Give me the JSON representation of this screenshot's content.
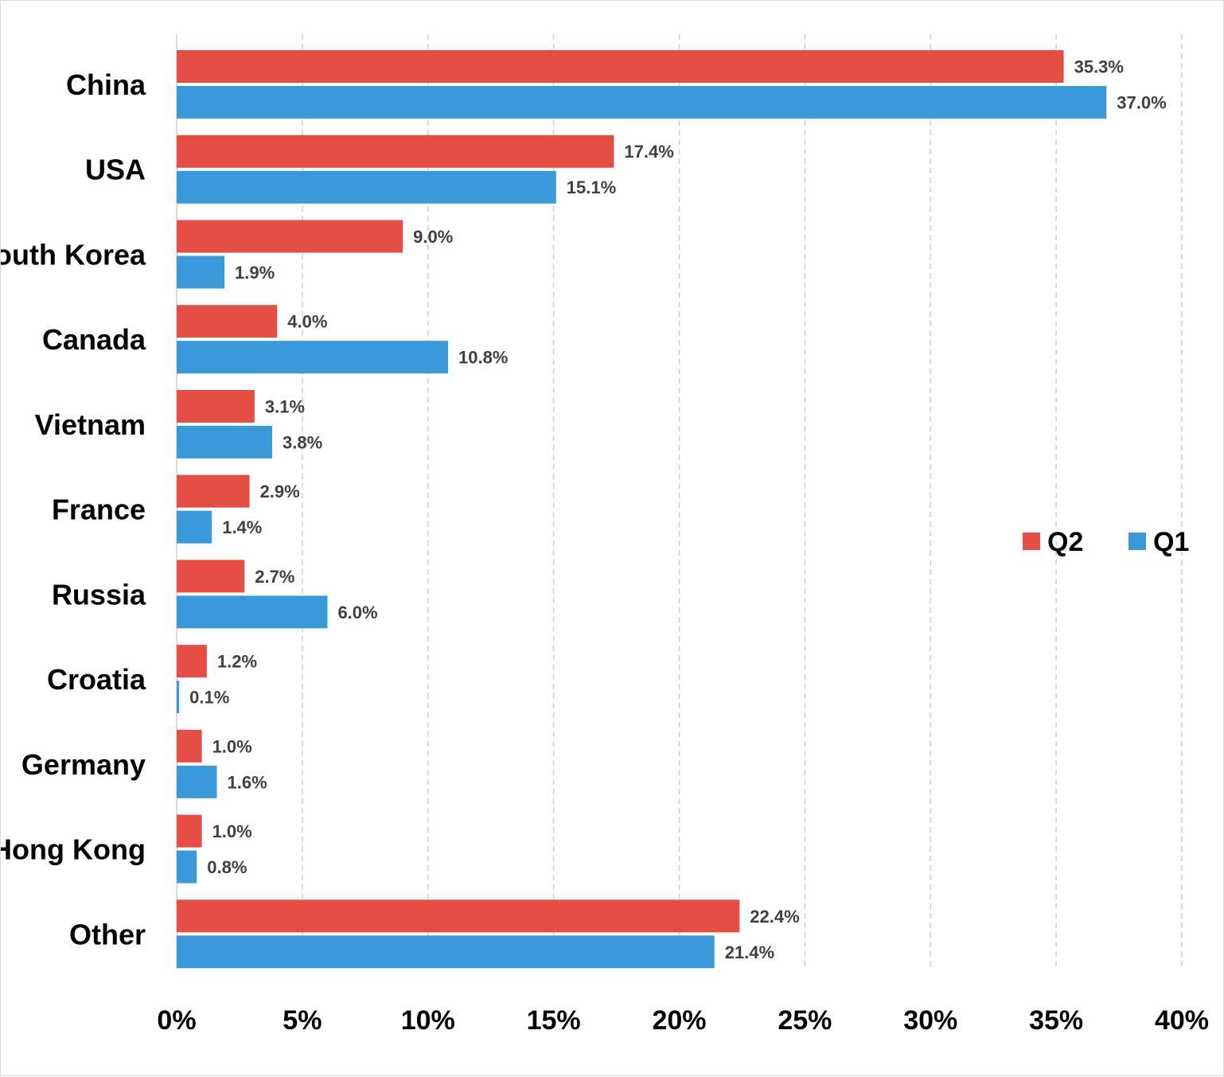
{
  "chart_data": {
    "type": "bar",
    "orientation": "horizontal",
    "categories": [
      "China",
      "USA",
      "South Korea",
      "Canada",
      "Vietnam",
      "France",
      "Russia",
      "Croatia",
      "Germany",
      "Hong Kong",
      "Other"
    ],
    "series": [
      {
        "name": "Q2",
        "color": "#e54e45",
        "values": [
          35.3,
          17.4,
          9.0,
          4.0,
          3.1,
          2.9,
          2.7,
          1.2,
          1.0,
          1.0,
          22.4
        ],
        "labels": [
          "35.3%",
          "17.4%",
          "9.0%",
          "4.0%",
          "3.1%",
          "2.9%",
          "2.7%",
          "1.2%",
          "1.0%",
          "1.0%",
          "22.4%"
        ]
      },
      {
        "name": "Q1",
        "color": "#3a9ad9",
        "values": [
          37.0,
          15.1,
          1.9,
          10.8,
          3.8,
          1.4,
          6.0,
          0.1,
          1.6,
          0.8,
          21.4
        ],
        "labels": [
          "37.0%",
          "15.1%",
          "1.9%",
          "10.8%",
          "3.8%",
          "1.4%",
          "6.0%",
          "0.1%",
          "1.6%",
          "0.8%",
          "21.4%"
        ]
      }
    ],
    "xlim": [
      0,
      40
    ],
    "x_ticks": [
      0,
      5,
      10,
      15,
      20,
      25,
      30,
      35,
      40
    ],
    "x_tick_labels": [
      "0%",
      "5%",
      "10%",
      "15%",
      "20%",
      "25%",
      "30%",
      "35%",
      "40%"
    ],
    "grid": "vertical dashed",
    "legend_position": "right",
    "title": "",
    "xlabel": "",
    "ylabel": ""
  }
}
